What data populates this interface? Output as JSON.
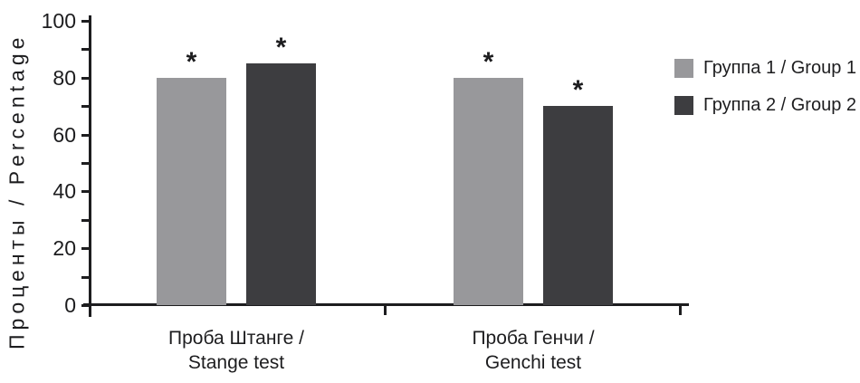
{
  "figure": {
    "background": "#ffffff",
    "text_color": "#1d1d1f",
    "axis_color": "#1d1d1f"
  },
  "chart_data": {
    "type": "bar",
    "title": "",
    "xlabel": "",
    "ylabel": "Проценты / Percentage",
    "ylim": [
      0,
      100
    ],
    "yticks_labeled": [
      0,
      20,
      40,
      60,
      80,
      100
    ],
    "yticks_minor": [
      10,
      30,
      50,
      70,
      90
    ],
    "grid": "off",
    "legend_position": "right",
    "significance_marker": "*",
    "categories": [
      {
        "line1": "Проба Штанге /",
        "line2": "Stange test"
      },
      {
        "line1": "Проба Генчи /",
        "line2": "Genchi test"
      }
    ],
    "series": [
      {
        "name": "Группа 1 / Group 1",
        "color": "#98989b",
        "values": [
          80,
          80
        ],
        "markers": [
          "*",
          "*"
        ]
      },
      {
        "name": "Группа 2 / Group 2",
        "color": "#3d3d40",
        "values": [
          85,
          70
        ],
        "markers": [
          "*",
          "*"
        ]
      }
    ]
  }
}
